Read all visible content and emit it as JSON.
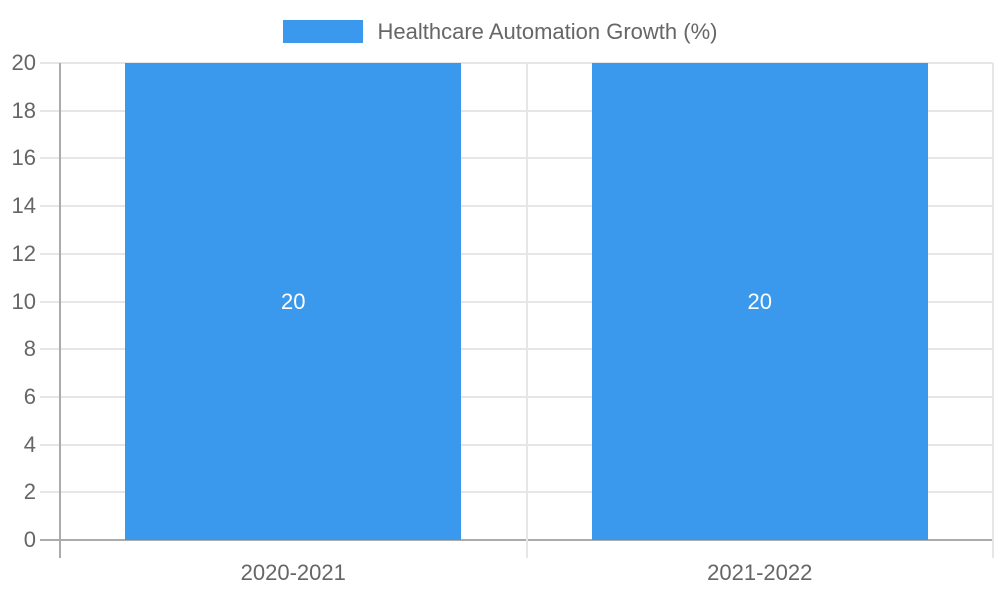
{
  "chart_data": {
    "type": "bar",
    "title": "",
    "categories": [
      "2020-2021",
      "2021-2022"
    ],
    "series": [
      {
        "name": "Healthcare Automation Growth (%)",
        "values": [
          20,
          20
        ]
      }
    ],
    "data_labels_shown": true,
    "legend": {
      "position": "top"
    },
    "xlabel": "",
    "ylabel": "",
    "ylim": [
      0,
      20
    ],
    "y_ticks": [
      0,
      2,
      4,
      6,
      8,
      10,
      12,
      14,
      16,
      18,
      20
    ],
    "grid": true,
    "bar_to_category_width_ratio": 0.72,
    "colors": {
      "bar": "#3a99ec",
      "axis_text": "#666666",
      "grid_line": "#e6e6e6",
      "zero_line": "#ababab",
      "bar_label_text": "#ffffff",
      "background": "#ffffff"
    }
  }
}
